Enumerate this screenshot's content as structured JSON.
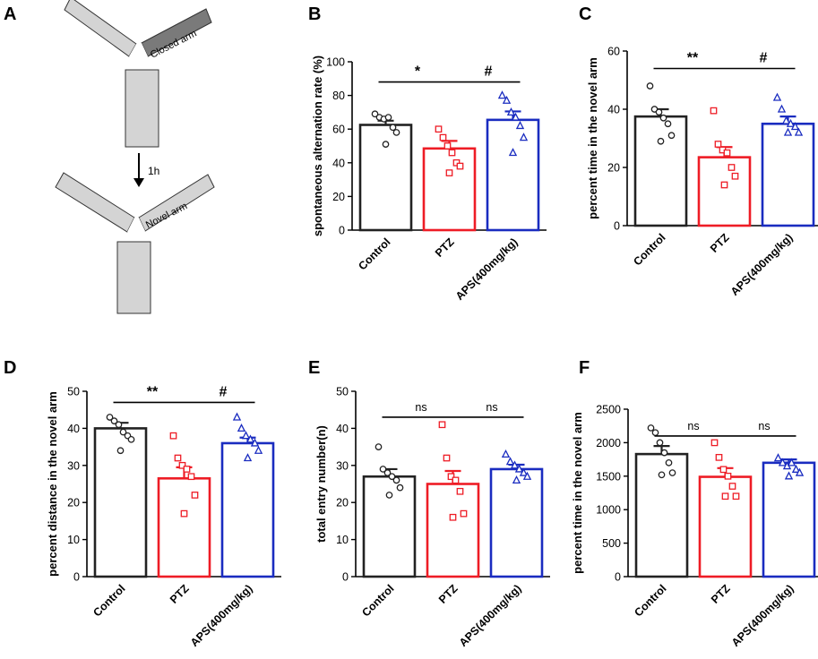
{
  "panels": [
    {
      "letter": "A"
    },
    {
      "letter": "B"
    },
    {
      "letter": "C"
    },
    {
      "letter": "D"
    },
    {
      "letter": "E"
    },
    {
      "letter": "F"
    }
  ],
  "maze": {
    "top_label": "Closed arm",
    "bottom_label": "Novel arm",
    "arrow_label": "1h"
  },
  "colors": {
    "control": "#222222",
    "ptz": "#ee1c25",
    "aps": "#1a2cc0",
    "maze_fill": "#d4d4d4",
    "closed_arm_fill": "#7a7a7a"
  },
  "chart_data": [
    {
      "panel": "B",
      "type": "bar",
      "categories": [
        "Control",
        "PTZ",
        "APS(400mg/kg)"
      ],
      "ylabel": "spontaneous alternation rate (%)",
      "ylim": [
        0,
        100
      ],
      "yticks": [
        0,
        20,
        40,
        60,
        80,
        100
      ],
      "values": [
        62.5,
        48.5,
        65.5
      ],
      "errors": [
        2.5,
        4.5,
        5
      ],
      "points": [
        [
          69,
          67,
          66,
          67,
          61,
          58,
          51
        ],
        [
          60,
          55,
          50,
          46,
          40,
          38,
          34
        ],
        [
          80,
          77,
          70,
          67,
          62,
          55,
          46
        ]
      ],
      "markers": [
        "circle",
        "square",
        "triangle"
      ],
      "comparisons": [
        {
          "from": 0,
          "to": 1,
          "y": 88,
          "label": "*"
        },
        {
          "from": 1,
          "to": 2,
          "y": 88,
          "label": "#"
        }
      ]
    },
    {
      "panel": "C",
      "type": "bar",
      "categories": [
        "Control",
        "PTZ",
        "APS(400mg/kg)"
      ],
      "ylabel": "percent time in the novel arm",
      "ylim": [
        0,
        60
      ],
      "yticks": [
        0,
        20,
        40,
        60
      ],
      "values": [
        37.5,
        23.5,
        35
      ],
      "errors": [
        2.5,
        3.5,
        2.5
      ],
      "points": [
        [
          48,
          40,
          39,
          37,
          35,
          31,
          29
        ],
        [
          39.5,
          28,
          26,
          25,
          20,
          17,
          14
        ],
        [
          44,
          40,
          36,
          35,
          34,
          32,
          32
        ]
      ],
      "markers": [
        "circle",
        "square",
        "triangle"
      ],
      "comparisons": [
        {
          "from": 0,
          "to": 1,
          "y": 54,
          "label": "**"
        },
        {
          "from": 1,
          "to": 2,
          "y": 54,
          "label": "#"
        }
      ]
    },
    {
      "panel": "D",
      "type": "bar",
      "categories": [
        "Control",
        "PTZ",
        "APS(400mg/kg)"
      ],
      "ylabel": "percent distance in the novel arm",
      "ylim": [
        0,
        50
      ],
      "yticks": [
        0,
        10,
        20,
        30,
        40,
        50
      ],
      "values": [
        40,
        26.5,
        36
      ],
      "errors": [
        1.5,
        3,
        1.5
      ],
      "points": [
        [
          43,
          42,
          41,
          39,
          38,
          37,
          34
        ],
        [
          38,
          32,
          30,
          29,
          27,
          22,
          17
        ],
        [
          43,
          40,
          38,
          37,
          36,
          34,
          32
        ]
      ],
      "markers": [
        "circle",
        "square",
        "triangle"
      ],
      "comparisons": [
        {
          "from": 0,
          "to": 1,
          "y": 47,
          "label": "**"
        },
        {
          "from": 1,
          "to": 2,
          "y": 47,
          "label": "#"
        }
      ]
    },
    {
      "panel": "E",
      "type": "bar",
      "categories": [
        "Control",
        "PTZ",
        "APS(400mg/kg)"
      ],
      "ylabel": "total entry number(n)",
      "ylim": [
        0,
        50
      ],
      "yticks": [
        0,
        10,
        20,
        30,
        40,
        50
      ],
      "values": [
        27,
        25,
        29
      ],
      "errors": [
        2,
        3.5,
        1.2
      ],
      "points": [
        [
          35,
          29,
          28,
          27,
          26,
          24,
          22
        ],
        [
          41,
          32,
          27,
          26,
          23,
          17,
          16
        ],
        [
          33,
          31,
          30,
          29,
          28,
          27,
          26
        ]
      ],
      "markers": [
        "circle",
        "square",
        "triangle"
      ],
      "comparisons": [
        {
          "from": 0,
          "to": 1,
          "y": 43,
          "label": "ns"
        },
        {
          "from": 1,
          "to": 2,
          "y": 43,
          "label": "ns"
        }
      ]
    },
    {
      "panel": "F",
      "type": "bar",
      "categories": [
        "Control",
        "PTZ",
        "APS(400mg/kg)"
      ],
      "ylabel": "percent time in the novel arm",
      "ylim": [
        0,
        2500
      ],
      "yticks": [
        0,
        500,
        1000,
        1500,
        2000,
        2500
      ],
      "values": [
        1830,
        1490,
        1700
      ],
      "errors": [
        120,
        130,
        50
      ],
      "points": [
        [
          2220,
          2150,
          2000,
          1850,
          1700,
          1550,
          1520
        ],
        [
          2000,
          1780,
          1600,
          1500,
          1350,
          1200,
          1200
        ],
        [
          1770,
          1700,
          1650,
          1700,
          1600,
          1550,
          1500
        ]
      ],
      "markers": [
        "circle",
        "square",
        "triangle"
      ],
      "comparisons": [
        {
          "from": 0,
          "to": 1,
          "y": 2100,
          "label": "ns"
        },
        {
          "from": 1,
          "to": 2,
          "y": 2100,
          "label": "ns"
        }
      ]
    }
  ]
}
